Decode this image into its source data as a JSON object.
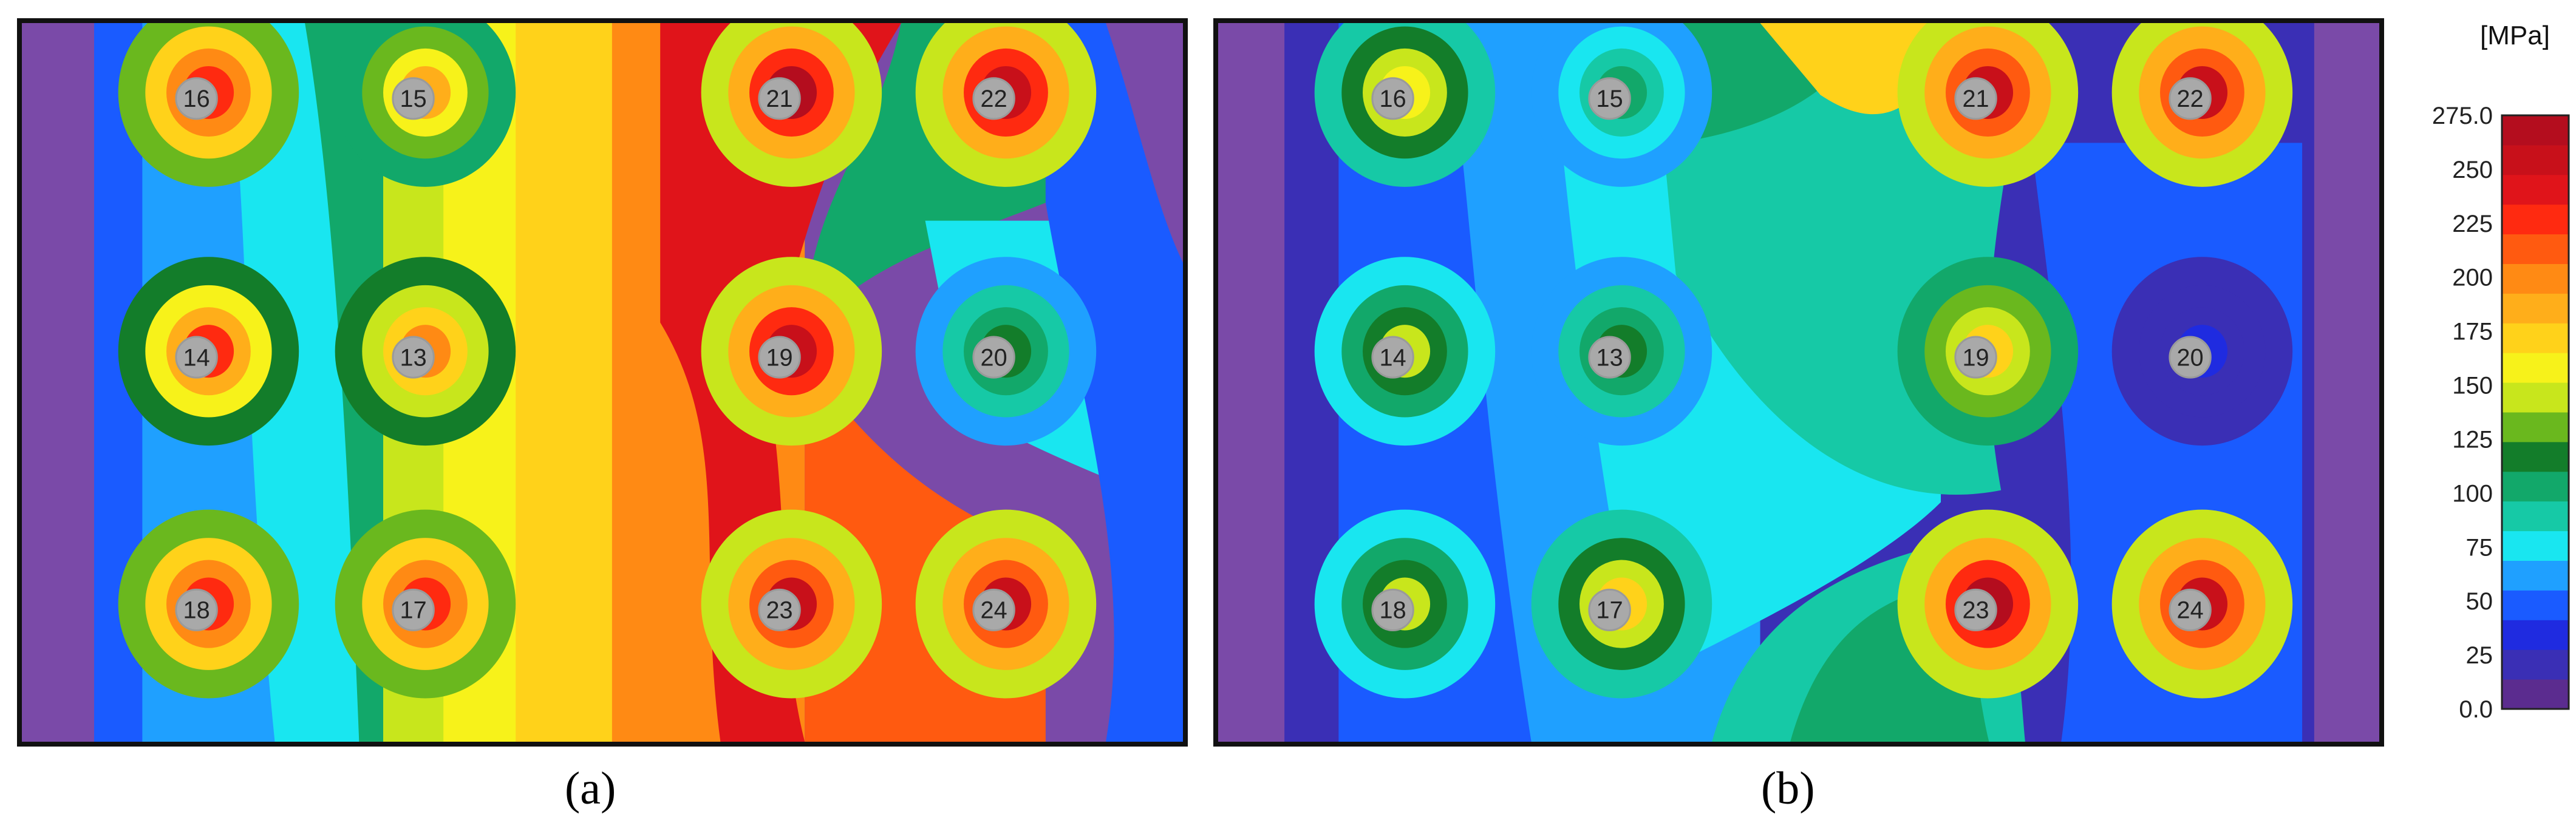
{
  "chart_data": [
    {
      "type": "heatmap",
      "panel_label": "(a)",
      "gauges": [
        {
          "id": "16",
          "value": 230
        },
        {
          "id": "15",
          "value": 180
        },
        {
          "id": "21",
          "value": 265
        },
        {
          "id": "22",
          "value": 260
        },
        {
          "id": "14",
          "value": 220
        },
        {
          "id": "13",
          "value": 200
        },
        {
          "id": "19",
          "value": 260
        },
        {
          "id": "20",
          "value": 120
        },
        {
          "id": "18",
          "value": 230
        },
        {
          "id": "17",
          "value": 230
        },
        {
          "id": "23",
          "value": 255
        },
        {
          "id": "24",
          "value": 255
        }
      ]
    },
    {
      "type": "heatmap",
      "panel_label": "(b)",
      "gauges": [
        {
          "id": "16",
          "value": 160
        },
        {
          "id": "15",
          "value": 100
        },
        {
          "id": "21",
          "value": 250
        },
        {
          "id": "22",
          "value": 255
        },
        {
          "id": "14",
          "value": 140
        },
        {
          "id": "13",
          "value": 120
        },
        {
          "id": "19",
          "value": 175
        },
        {
          "id": "20",
          "value": 30
        },
        {
          "id": "18",
          "value": 140
        },
        {
          "id": "17",
          "value": 170
        },
        {
          "id": "23",
          "value": 265
        },
        {
          "id": "24",
          "value": 255
        }
      ]
    }
  ],
  "colorbar": {
    "unit": "[MPa]",
    "tick_labels": [
      "275.0",
      "250",
      "225",
      "200",
      "175",
      "150",
      "125",
      "100",
      "75",
      "50",
      "25",
      "0.0"
    ],
    "range": [
      0,
      275
    ],
    "colors": [
      "#5b2c8f",
      "#3a2fb5",
      "#1f2be0",
      "#1a5bff",
      "#1fa0ff",
      "#19e6f0",
      "#16c9a6",
      "#12a86a",
      "#137d2a",
      "#6ab81e",
      "#c8e61c",
      "#f7f21a",
      "#ffd21a",
      "#ffae1a",
      "#ff8a14",
      "#ff5a10",
      "#ff2a10",
      "#e0141a",
      "#c8101a",
      "#b40d1e"
    ]
  }
}
